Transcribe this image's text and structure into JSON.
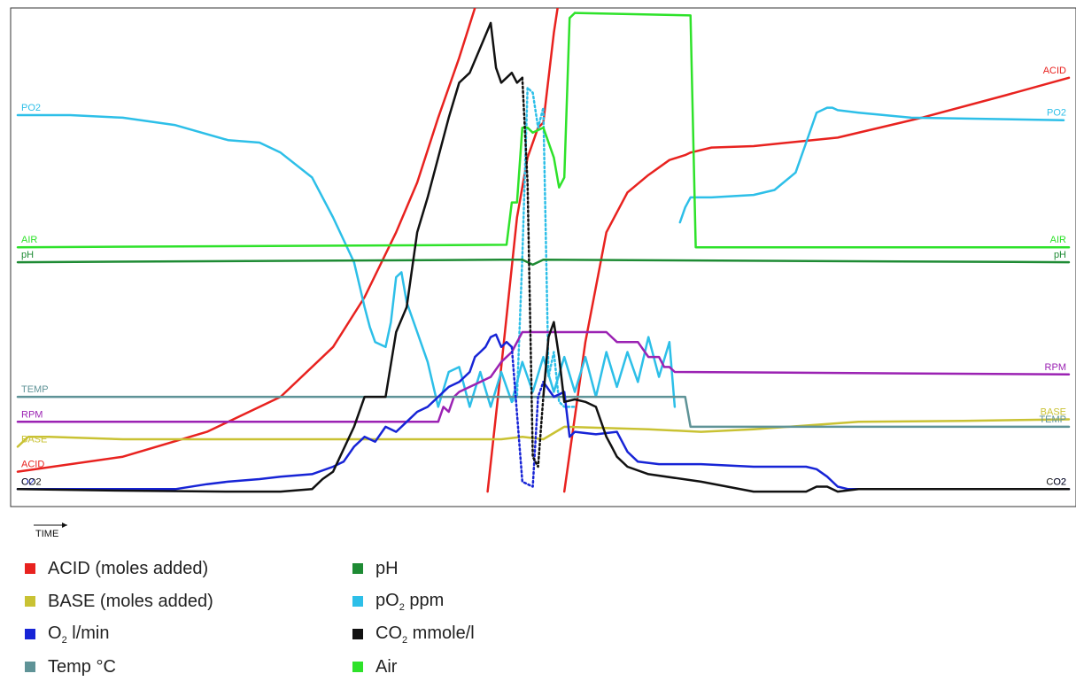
{
  "chart_data": {
    "type": "line",
    "title": "",
    "xlabel": "TIME",
    "ylabel": "",
    "grid": false,
    "legend_position": "bottom-left",
    "x_range": [
      0,
      100
    ],
    "y_range": [
      0,
      100
    ],
    "series": [
      {
        "id": "acid",
        "color": "#e8221f",
        "label_left": "ACID",
        "label_right": "ACID",
        "segments": [
          {
            "x": [
              0,
              10,
              18,
              25,
              30,
              33,
              36,
              38,
              40,
              42,
              43.5,
              44,
              45
            ],
            "y": [
              7,
              10,
              15,
              22,
              32,
              42,
              55,
              65,
              78,
              90,
              100,
              110,
              124
            ]
          },
          {
            "x": [
              44.7,
              46,
              47.5,
              48.5,
              49.5,
              50,
              51,
              52.5,
              53.5
            ],
            "y": [
              3,
              28,
              58,
              70,
              76,
              77,
              95,
              116,
              130
            ]
          },
          {
            "x": [
              52,
              54,
              56,
              58,
              60,
              62,
              63.5,
              64,
              66,
              70,
              78,
              86,
              94,
              100
            ],
            "y": [
              3,
              33,
              55,
              63,
              66.5,
              69.5,
              70.5,
              71,
              72,
              72.3,
              74,
              78,
              82.5,
              86
            ]
          }
        ]
      },
      {
        "id": "po2",
        "color": "#2dbfe8",
        "label_left": "PO2",
        "label_right": "PO2",
        "segments": [
          {
            "x": [
              0,
              5,
              10,
              15,
              20,
              23,
              25,
              28,
              30,
              32,
              33,
              33.5,
              34,
              35,
              35.5,
              36,
              36.5,
              37,
              38,
              39,
              40,
              41,
              42,
              43,
              44,
              45,
              46,
              47
            ],
            "y": [
              78.5,
              78.5,
              78,
              76.5,
              73.5,
              73,
              71,
              66,
              58,
              49,
              40,
              36,
              33,
              32,
              37,
              46,
              47,
              41,
              35,
              29,
              20,
              27,
              28,
              20,
              27,
              20,
              27,
              21
            ]
          },
          {
            "x": [
              47,
              48,
              49,
              50,
              51,
              52,
              53,
              54,
              55,
              56,
              57,
              58,
              59,
              60,
              61,
              62,
              62.5
            ],
            "y": [
              21,
              29,
              23,
              30,
              23,
              30,
              23,
              30,
              22,
              31,
              24,
              31,
              25,
              34,
              26,
              33,
              20
            ]
          },
          {
            "x": [
              63,
              63.5,
              64,
              66,
              70,
              72,
              74,
              75,
              76,
              77,
              77.5,
              78,
              80,
              85,
              99.5
            ],
            "y": [
              57,
              60,
              62,
              62,
              62.5,
              63.5,
              67,
              73,
              79,
              80,
              80,
              79.5,
              79,
              78,
              77.5
            ]
          }
        ]
      },
      {
        "id": "po2_transition",
        "color": "#2dbfe8",
        "dashed": true,
        "segments": [
          {
            "x": [
              47,
              47.5,
              48,
              48.5,
              49,
              49.5,
              50,
              50.5,
              51,
              51.5,
              52,
              53
            ],
            "y": [
              21,
              22,
              50,
              84,
              83,
              76,
              80,
              26,
              31,
              21,
              20,
              20
            ]
          }
        ]
      },
      {
        "id": "air",
        "color": "#2ee22a",
        "label_left": "AIR",
        "label_right": "AIR",
        "segments": [
          {
            "x": [
              0,
              46.5,
              47,
              47.5,
              48,
              48.5,
              49,
              50,
              51,
              51.5,
              52,
              52.5,
              53
            ],
            "y": [
              52,
              52.5,
              61,
              61,
              76,
              76,
              75,
              76,
              70,
              64,
              66,
              98,
              99
            ]
          },
          {
            "x": [
              53,
              64,
              64.5,
              100
            ],
            "y": [
              99,
              98.5,
              52,
              52
            ]
          }
        ]
      },
      {
        "id": "ph",
        "color": "#1e8b34",
        "label_left": "pH",
        "label_right": "pH",
        "segments": [
          {
            "x": [
              0,
              46,
              48,
              49,
              50,
              100
            ],
            "y": [
              49,
              49.5,
              49.5,
              48.5,
              49.5,
              49
            ]
          }
        ]
      },
      {
        "id": "rpm",
        "color": "#9b22b3",
        "label_left": "RPM",
        "label_right": "RPM",
        "segments": [
          {
            "x": [
              0,
              40,
              40.5,
              41,
              41.5,
              42,
              43,
              44,
              45,
              46,
              47,
              48,
              49,
              49.5,
              50,
              52,
              56,
              57,
              59,
              60,
              61,
              61.5,
              62,
              62.5,
              100
            ],
            "y": [
              17,
              17,
              20,
              19,
              22,
              23,
              24,
              25,
              26,
              29,
              31,
              35,
              35,
              35,
              35,
              35,
              35,
              33,
              33,
              30,
              30,
              28,
              28,
              27,
              26.5
            ]
          }
        ]
      },
      {
        "id": "base",
        "color": "#c9c233",
        "label_left": "BASE",
        "label_right": "BASE",
        "segments": [
          {
            "x": [
              0,
              1,
              3,
              10,
              20,
              30,
              40,
              46,
              48,
              50,
              52,
              60,
              65,
              70,
              80,
              90,
              100
            ],
            "y": [
              12,
              14,
              14,
              13.5,
              13.5,
              13.5,
              13.5,
              13.5,
              14,
              13.5,
              16,
              15.5,
              15,
              15.5,
              17,
              17.2,
              17.5
            ]
          }
        ]
      },
      {
        "id": "temp",
        "color": "#5f9397",
        "label_left": "TEMP",
        "label_right": "TEMP",
        "segments": [
          {
            "x": [
              0,
              63.5,
              64,
              100
            ],
            "y": [
              22,
              22,
              16,
              16
            ]
          }
        ]
      },
      {
        "id": "o2",
        "color": "#1724d6",
        "label_left": "O2",
        "label_right": "O2",
        "segments": [
          {
            "x": [
              0,
              10,
              15,
              18,
              20,
              23,
              25,
              28,
              30,
              31,
              32,
              33,
              34,
              35,
              36,
              37,
              38,
              39,
              40,
              41,
              42,
              43,
              43.5,
              44,
              44.5,
              45,
              45.5,
              46,
              46.5,
              47
            ],
            "y": [
              3.5,
              3.5,
              3.5,
              4.5,
              5,
              5.5,
              6,
              6.5,
              8,
              9,
              12,
              14,
              13,
              16,
              15,
              17,
              19,
              20,
              22,
              24,
              25,
              27,
              30,
              31,
              32,
              34,
              34.5,
              32,
              33,
              32
            ]
          },
          {
            "x": [
              50,
              51,
              52,
              52.5,
              53,
              55,
              57,
              58,
              59,
              61,
              65,
              70,
              75,
              76,
              77,
              78,
              79,
              80,
              85,
              90,
              100
            ],
            "y": [
              25,
              22,
              23,
              14,
              15,
              14.5,
              15,
              11,
              9,
              8.5,
              8.5,
              8,
              8,
              7.5,
              6,
              4,
              3.5,
              3.5,
              3.5,
              3.5,
              3.5
            ]
          }
        ]
      },
      {
        "id": "o2_transition",
        "color": "#1724d6",
        "dashed": true,
        "segments": [
          {
            "x": [
              47,
              48,
              49,
              49.5,
              50
            ],
            "y": [
              32,
              5,
              4,
              22,
              25
            ]
          }
        ]
      },
      {
        "id": "co2",
        "color": "#111111",
        "label_left": "CO2",
        "label_right": "CO2",
        "segments": [
          {
            "x": [
              0,
              10,
              20,
              25,
              28,
              29,
              30,
              32,
              33,
              34,
              35,
              36,
              37,
              38,
              39,
              40,
              41,
              42,
              43,
              44,
              45,
              45.5,
              46,
              46.5,
              47,
              47.5,
              48
            ],
            "y": [
              3.5,
              3.2,
              3,
              3,
              3.5,
              5.5,
              7,
              16,
              22,
              22,
              22,
              35,
              40,
              55,
              62,
              70,
              78,
              85,
              87,
              92,
              97,
              88,
              85,
              86,
              87,
              85,
              86
            ]
          },
          {
            "x": [
              50,
              50.5,
              51,
              51.5,
              52,
              53,
              54,
              55,
              56,
              56.5,
              57,
              58,
              60,
              65,
              70,
              75,
              76,
              77,
              78,
              80,
              100
            ],
            "y": [
              22,
              34,
              37,
              30,
              21,
              21.5,
              21,
              20,
              14,
              12,
              10,
              8,
              6.5,
              5,
              3,
              3,
              4,
              4,
              3,
              3.5,
              3.5
            ]
          }
        ]
      },
      {
        "id": "co2_transition",
        "color": "#111111",
        "dashed": true,
        "segments": [
          {
            "x": [
              48,
              48.5,
              49,
              49.5,
              50
            ],
            "y": [
              86,
              65,
              10,
              8,
              22
            ]
          }
        ]
      }
    ],
    "legend": [
      {
        "color": "#e8221f",
        "text": "ACID (moles added)"
      },
      {
        "color": "#c9c233",
        "text": "BASE (moles added)"
      },
      {
        "color": "#1724d6",
        "pre": "O",
        "sub": "2",
        "post": " l/min"
      },
      {
        "color": "#5f9397",
        "text": "Temp °C"
      },
      {
        "color": "#1e8b34",
        "text": "pH"
      },
      {
        "color": "#2dbfe8",
        "pre": "pO",
        "sub": "2",
        "post": " ppm"
      },
      {
        "color": "#111111",
        "pre": "CO",
        "sub": "2",
        "post": " mmole/l"
      },
      {
        "color": "#2ee22a",
        "text": "Air"
      }
    ]
  }
}
